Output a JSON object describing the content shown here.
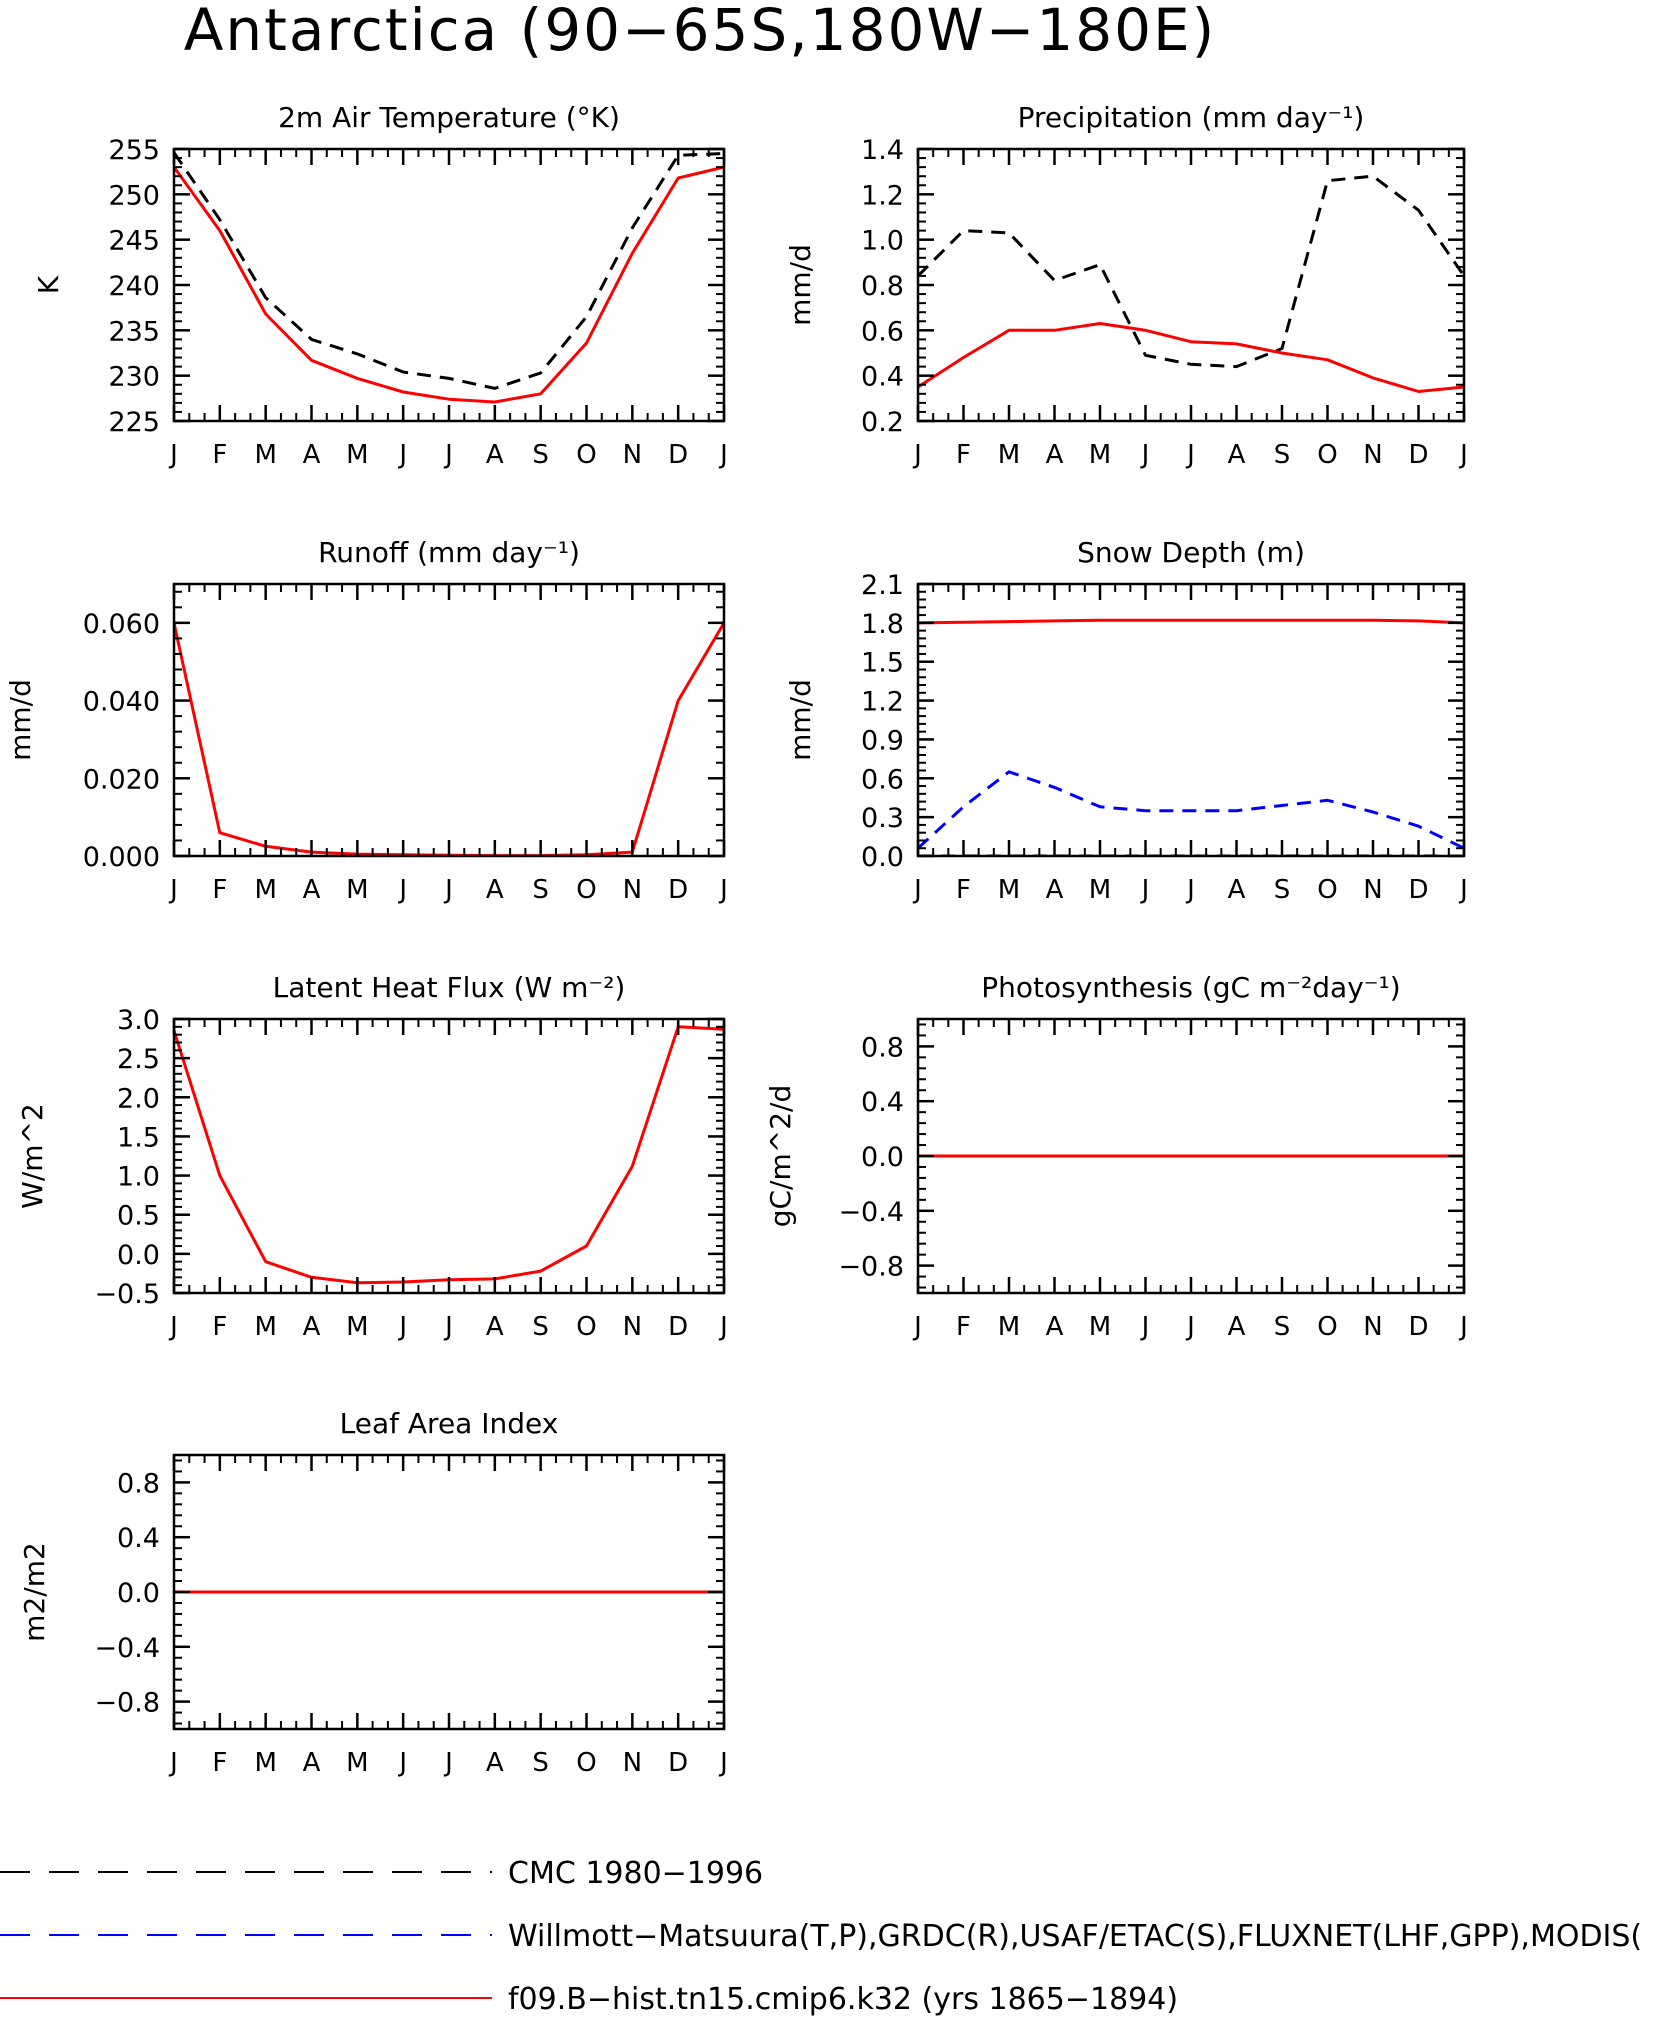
{
  "figure_title": "Antarctica (90−65S,180W−180E)",
  "months": [
    "J",
    "F",
    "M",
    "A",
    "M",
    "J",
    "J",
    "A",
    "S",
    "O",
    "N",
    "D",
    "J"
  ],
  "colors": {
    "obs_black": "#000000",
    "obs_blue": "#0000ff",
    "model_red": "#ff0000"
  },
  "legend": [
    {
      "label": "CMC 1980−1996",
      "color": "#000000",
      "style": "dashed"
    },
    {
      "label": "Willmott−Matsuura(T,P),GRDC(R),USAF/ETAC(S),FLUXNET(LHF,GPP),MODIS(",
      "color": "#0000ff",
      "style": "dashed"
    },
    {
      "label": "f09.B−hist.tn15.cmip6.k32 (yrs 1865−1894)",
      "color": "#ff0000",
      "style": "solid"
    }
  ],
  "chart_data": [
    {
      "type": "line",
      "title": "2m Air Temperature (°K)",
      "ylabel": "K",
      "ylim": [
        225,
        255
      ],
      "yticks": [
        "225",
        "230",
        "235",
        "240",
        "245",
        "250",
        "255"
      ],
      "x": [
        "J",
        "F",
        "M",
        "A",
        "M",
        "J",
        "J",
        "A",
        "S",
        "O",
        "N",
        "D",
        "J"
      ],
      "series": [
        {
          "color": "#000000",
          "style": "dashed",
          "values": [
            254.6,
            247.2,
            238.6,
            234.0,
            232.4,
            230.4,
            229.7,
            228.6,
            230.3,
            236.5,
            246.3,
            254.3,
            254.5
          ]
        },
        {
          "color": "#ff0000",
          "style": "solid",
          "values": [
            253.0,
            246.0,
            236.8,
            231.7,
            229.7,
            228.2,
            227.4,
            227.1,
            228.0,
            233.6,
            243.5,
            251.8,
            253.0
          ]
        }
      ]
    },
    {
      "type": "line",
      "title": "Precipitation (mm day⁻¹)",
      "ylabel": "mm/d",
      "ylim": [
        0.2,
        1.4
      ],
      "yticks": [
        "0.2",
        "0.4",
        "0.6",
        "0.8",
        "1.0",
        "1.2",
        "1.4"
      ],
      "x": [
        "J",
        "F",
        "M",
        "A",
        "M",
        "J",
        "J",
        "A",
        "S",
        "O",
        "N",
        "D",
        "J"
      ],
      "series": [
        {
          "color": "#000000",
          "style": "dashed",
          "values": [
            0.84,
            1.04,
            1.03,
            0.82,
            0.89,
            0.49,
            0.45,
            0.44,
            0.52,
            1.26,
            1.28,
            1.13,
            0.84
          ]
        },
        {
          "color": "#ff0000",
          "style": "solid",
          "values": [
            0.35,
            0.48,
            0.6,
            0.6,
            0.63,
            0.6,
            0.55,
            0.54,
            0.5,
            0.47,
            0.39,
            0.33,
            0.35
          ]
        }
      ]
    },
    {
      "type": "line",
      "title": "Runoff (mm day⁻¹)",
      "ylabel": "mm/d",
      "ylim": [
        0.0,
        0.07
      ],
      "yticks": [
        "0.000",
        "0.020",
        "0.040",
        "0.060"
      ],
      "x": [
        "J",
        "F",
        "M",
        "A",
        "M",
        "J",
        "J",
        "A",
        "S",
        "O",
        "N",
        "D",
        "J"
      ],
      "series": [
        {
          "color": "#ff0000",
          "style": "solid",
          "values": [
            0.06,
            0.006,
            0.0025,
            0.001,
            0.0005,
            0.0003,
            0.0002,
            0.0001,
            0.0001,
            0.0003,
            0.001,
            0.04,
            0.06
          ]
        }
      ]
    },
    {
      "type": "line",
      "title": "Snow Depth (m)",
      "ylabel": "mm/d",
      "ylim": [
        0.0,
        2.1
      ],
      "yticks": [
        "0.0",
        "0.3",
        "0.6",
        "0.9",
        "1.2",
        "1.5",
        "1.8",
        "2.1"
      ],
      "x": [
        "J",
        "F",
        "M",
        "A",
        "M",
        "J",
        "J",
        "A",
        "S",
        "O",
        "N",
        "D",
        "J"
      ],
      "series": [
        {
          "color": "#000000",
          "style": "dashed",
          "values": [
            0.0,
            0.0,
            0.0,
            0.0,
            0.0,
            0.0,
            0.0,
            0.0,
            0.0,
            0.0,
            0.0,
            0.0,
            0.0
          ]
        },
        {
          "color": "#0000ff",
          "style": "dashed",
          "values": [
            0.06,
            0.38,
            0.65,
            0.53,
            0.38,
            0.35,
            0.35,
            0.35,
            0.39,
            0.43,
            0.34,
            0.23,
            0.06
          ]
        },
        {
          "color": "#ff0000",
          "style": "solid",
          "values": [
            1.8,
            1.805,
            1.81,
            1.815,
            1.82,
            1.82,
            1.82,
            1.82,
            1.82,
            1.82,
            1.82,
            1.815,
            1.8
          ]
        }
      ]
    },
    {
      "type": "line",
      "title": "Latent Heat Flux (W m⁻²)",
      "ylabel": "W/m^2",
      "ylim": [
        -0.5,
        3.0
      ],
      "yticks": [
        "−0.5",
        "0.0",
        "0.5",
        "1.0",
        "1.5",
        "2.0",
        "2.5",
        "3.0"
      ],
      "x": [
        "J",
        "F",
        "M",
        "A",
        "M",
        "J",
        "J",
        "A",
        "S",
        "O",
        "N",
        "D",
        "J"
      ],
      "series": [
        {
          "color": "#ff0000",
          "style": "solid",
          "values": [
            2.85,
            1.0,
            -0.1,
            -0.3,
            -0.37,
            -0.36,
            -0.33,
            -0.32,
            -0.22,
            0.1,
            1.12,
            2.9,
            2.87
          ]
        }
      ]
    },
    {
      "type": "line",
      "title": "Photosynthesis (gC m⁻²day⁻¹)",
      "ylabel": "gC/m^2/d",
      "ylim": [
        -1.0,
        1.0
      ],
      "yticks": [
        "−0.8",
        "−0.4",
        "0.0",
        "0.4",
        "0.8"
      ],
      "x": [
        "J",
        "F",
        "M",
        "A",
        "M",
        "J",
        "J",
        "A",
        "S",
        "O",
        "N",
        "D",
        "J"
      ],
      "series": [
        {
          "color": "#ff0000",
          "style": "solid",
          "values": [
            0,
            0,
            0,
            0,
            0,
            0,
            0,
            0,
            0,
            0,
            0,
            0,
            0
          ]
        }
      ]
    },
    {
      "type": "line",
      "title": "Leaf Area Index",
      "ylabel": "m2/m2",
      "ylim": [
        -1.0,
        1.0
      ],
      "yticks": [
        "−0.8",
        "−0.4",
        "0.0",
        "0.4",
        "0.8"
      ],
      "x": [
        "J",
        "F",
        "M",
        "A",
        "M",
        "J",
        "J",
        "A",
        "S",
        "O",
        "N",
        "D",
        "J"
      ],
      "series": [
        {
          "color": "#ff0000",
          "style": "solid",
          "values": [
            0,
            0,
            0,
            0,
            0,
            0,
            0,
            0,
            0,
            0,
            0,
            0,
            0
          ]
        }
      ]
    }
  ]
}
